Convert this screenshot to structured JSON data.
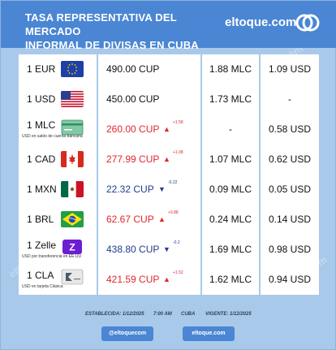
{
  "header": {
    "title_line1": "TASA REPRESENTATIVA DEL MERCADO",
    "title_line2": "INFORMAL DE DIVISAS EN CUBA",
    "brand": "eltoque.com"
  },
  "rows": [
    {
      "currency": "1 EUR",
      "flag": "eu-flag",
      "price": "490.00 CUP",
      "trend": "flat",
      "change": "",
      "mlc": "1.88 MLC",
      "usd": "1.09 USD",
      "sub": ""
    },
    {
      "currency": "1 USD",
      "flag": "us-flag",
      "price": "450.00 CUP",
      "trend": "flat",
      "change": "",
      "mlc": "1.73 MLC",
      "usd": "-",
      "sub": ""
    },
    {
      "currency": "1 MLC",
      "flag": "mlc-card",
      "price": "260.00 CUP",
      "trend": "up",
      "change": "+1.58",
      "mlc": "-",
      "usd": "0.58 USD",
      "sub": "USD en saldo de cuenta bancaria"
    },
    {
      "currency": "1 CAD",
      "flag": "ca-flag",
      "price": "277.99 CUP",
      "trend": "up",
      "change": "+1.08",
      "mlc": "1.07 MLC",
      "usd": "0.62 USD",
      "sub": ""
    },
    {
      "currency": "1 MXN",
      "flag": "mx-flag",
      "price": "22.32 CUP",
      "trend": "down",
      "change": "-0.22",
      "mlc": "0.09 MLC",
      "usd": "0.05 USD",
      "sub": ""
    },
    {
      "currency": "1 BRL",
      "flag": "br-flag",
      "price": "62.67 CUP",
      "trend": "up",
      "change": "+3.88",
      "mlc": "0.24 MLC",
      "usd": "0.14 USD",
      "sub": ""
    },
    {
      "currency": "1 Zelle",
      "flag": "zelle-logo",
      "price": "438.80 CUP",
      "trend": "down",
      "change": "-0.2",
      "mlc": "1.69 MLC",
      "usd": "0.98 USD",
      "sub": "USD por transferencia en EE.UU"
    },
    {
      "currency": "1 CLA",
      "flag": "cla-card",
      "price": "421.59 CUP",
      "trend": "up",
      "change": "+1.52",
      "mlc": "1.62 MLC",
      "usd": "0.94 USD",
      "sub": "USD en tarjeta Clásica"
    }
  ],
  "footer": {
    "established": "ESTABLECIDA: 1/12/2025",
    "time": "7:00 AM",
    "place": "CUBA",
    "valid": "VIGENTE: 1/12/2025"
  },
  "buttons": {
    "handle": "@eltoquecom",
    "site": "eltoque.com"
  },
  "watermark": "eltoque.com",
  "colors": {
    "header": "#4a86d3",
    "background": "#a9c9ea",
    "up": "#e1262c",
    "down": "#1f3d8a"
  }
}
